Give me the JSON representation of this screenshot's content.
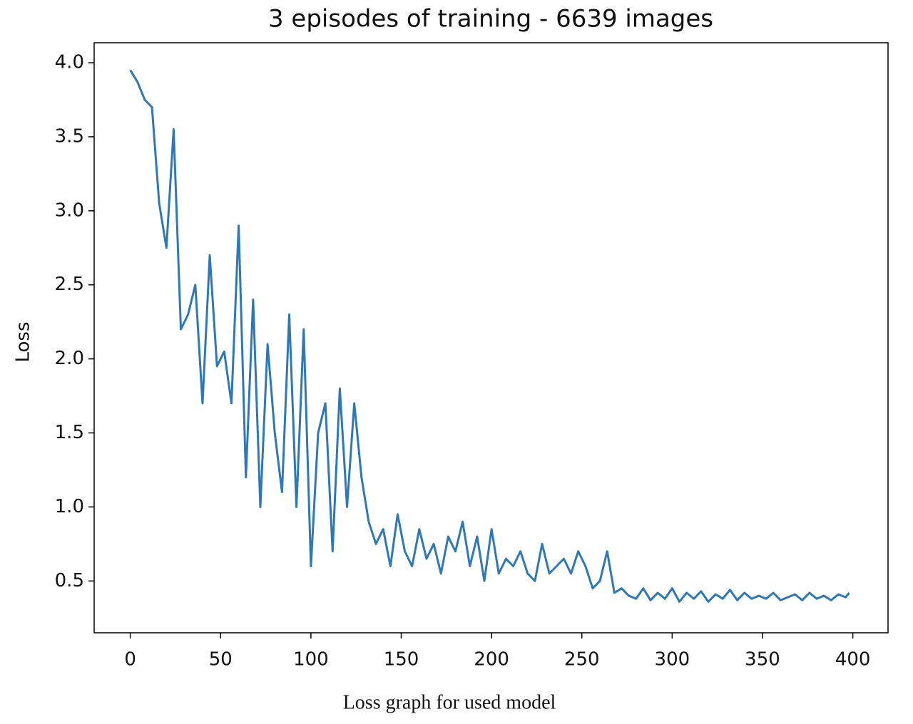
{
  "chart_data": {
    "type": "line",
    "title": "3 episodes of training - 6639 images",
    "y_label": "Loss",
    "caption": "Loss graph for used model",
    "x": [
      0,
      4,
      8,
      12,
      16,
      20,
      24,
      28,
      32,
      36,
      40,
      44,
      48,
      52,
      56,
      60,
      64,
      68,
      72,
      76,
      80,
      84,
      88,
      92,
      96,
      100,
      104,
      108,
      112,
      116,
      120,
      124,
      128,
      132,
      136,
      140,
      144,
      148,
      152,
      156,
      160,
      164,
      168,
      172,
      176,
      180,
      184,
      188,
      192,
      196,
      200,
      204,
      208,
      212,
      216,
      220,
      224,
      228,
      232,
      236,
      240,
      244,
      248,
      252,
      256,
      260,
      264,
      268,
      272,
      276,
      280,
      284,
      288,
      292,
      296,
      300,
      304,
      308,
      312,
      316,
      320,
      324,
      328,
      332,
      336,
      340,
      344,
      348,
      352,
      356,
      360,
      364,
      368,
      372,
      376,
      380,
      384,
      388,
      392,
      396,
      398
    ],
    "series": [
      {
        "name": "Loss",
        "color": "#2e78b5",
        "values": [
          3.95,
          3.87,
          3.75,
          3.7,
          3.05,
          2.75,
          3.55,
          2.2,
          2.3,
          2.5,
          1.7,
          2.7,
          1.95,
          2.05,
          1.7,
          2.9,
          1.2,
          2.4,
          1.0,
          2.1,
          1.5,
          1.1,
          2.3,
          1.0,
          2.2,
          0.6,
          1.5,
          1.7,
          0.7,
          1.8,
          1.0,
          1.7,
          1.2,
          0.9,
          0.75,
          0.85,
          0.6,
          0.95,
          0.7,
          0.6,
          0.85,
          0.65,
          0.75,
          0.55,
          0.8,
          0.7,
          0.9,
          0.6,
          0.8,
          0.5,
          0.85,
          0.55,
          0.65,
          0.6,
          0.7,
          0.55,
          0.5,
          0.75,
          0.55,
          0.6,
          0.65,
          0.55,
          0.7,
          0.6,
          0.45,
          0.5,
          0.7,
          0.42,
          0.45,
          0.4,
          0.38,
          0.45,
          0.37,
          0.42,
          0.38,
          0.45,
          0.36,
          0.42,
          0.38,
          0.43,
          0.36,
          0.41,
          0.38,
          0.44,
          0.37,
          0.42,
          0.38,
          0.4,
          0.38,
          0.42,
          0.37,
          0.39,
          0.41,
          0.37,
          0.42,
          0.38,
          0.4,
          0.37,
          0.41,
          0.39,
          0.42
        ]
      }
    ],
    "xlim": [
      -20,
      419.5
    ],
    "ylim": [
      0.15,
      4.135
    ],
    "xticks": [
      0,
      50,
      100,
      150,
      200,
      250,
      300,
      350,
      400
    ],
    "yticks": [
      {
        "value": 0.5,
        "label": "0.5"
      },
      {
        "value": 1,
        "label": "1.0"
      },
      {
        "value": 1.5,
        "label": "1.5"
      },
      {
        "value": 2,
        "label": "2.0"
      },
      {
        "value": 2.5,
        "label": "2.5"
      },
      {
        "value": 3,
        "label": "3.0"
      },
      {
        "value": 3.5,
        "label": "3.5"
      },
      {
        "value": 4,
        "label": "4.0"
      }
    ]
  }
}
